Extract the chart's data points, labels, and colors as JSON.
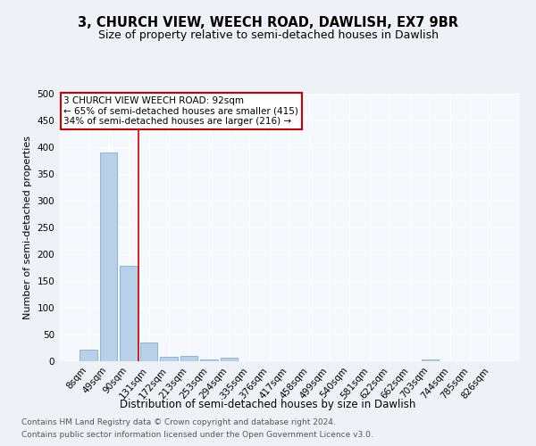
{
  "title": "3, CHURCH VIEW, WEECH ROAD, DAWLISH, EX7 9BR",
  "subtitle": "Size of property relative to semi-detached houses in Dawlish",
  "xlabel": "Distribution of semi-detached houses by size in Dawlish",
  "ylabel": "Number of semi-detached properties",
  "footnote1": "Contains HM Land Registry data © Crown copyright and database right 2024.",
  "footnote2": "Contains public sector information licensed under the Open Government Licence v3.0.",
  "bar_labels": [
    "8sqm",
    "49sqm",
    "90sqm",
    "131sqm",
    "172sqm",
    "213sqm",
    "253sqm",
    "294sqm",
    "335sqm",
    "376sqm",
    "417sqm",
    "458sqm",
    "499sqm",
    "540sqm",
    "581sqm",
    "622sqm",
    "662sqm",
    "703sqm",
    "744sqm",
    "785sqm",
    "826sqm"
  ],
  "bar_values": [
    22,
    390,
    178,
    35,
    8,
    10,
    4,
    6,
    0,
    0,
    0,
    0,
    0,
    0,
    0,
    0,
    0,
    4,
    0,
    0,
    0
  ],
  "bar_color": "#b8d0e8",
  "bar_edge_color": "#7aafd4",
  "vline_color": "#cc0000",
  "annotation_text": "3 CHURCH VIEW WEECH ROAD: 92sqm\n← 65% of semi-detached houses are smaller (415)\n34% of semi-detached houses are larger (216) →",
  "annotation_box_color": "#cc0000",
  "ylim": [
    0,
    500
  ],
  "yticks": [
    0,
    50,
    100,
    150,
    200,
    250,
    300,
    350,
    400,
    450,
    500
  ],
  "title_fontsize": 10.5,
  "subtitle_fontsize": 9,
  "xlabel_fontsize": 8.5,
  "ylabel_fontsize": 8,
  "tick_fontsize": 7.5,
  "footnote_fontsize": 6.5,
  "bg_color": "#eef2f8",
  "plot_bg_color": "#f5f8fd",
  "grid_color": "#ffffff"
}
